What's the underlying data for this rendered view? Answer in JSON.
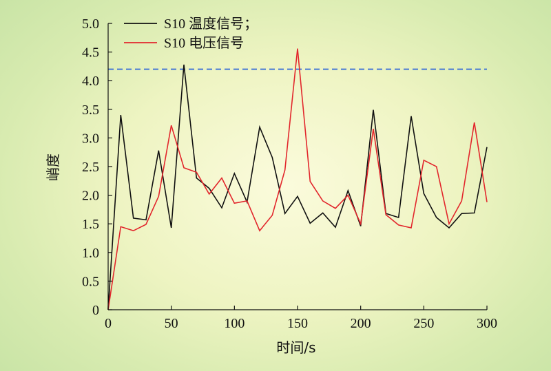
{
  "chart_data": {
    "type": "line",
    "xlabel": "时间/s",
    "ylabel": "峭度",
    "xlim": [
      0,
      300
    ],
    "ylim": [
      0,
      5.0
    ],
    "x_ticks": [
      "0",
      "50",
      "100",
      "150",
      "200",
      "250",
      "300"
    ],
    "y_ticks": [
      "0",
      "0.5",
      "1.0",
      "1.5",
      "2.0",
      "2.5",
      "3.0",
      "3.5",
      "4.0",
      "4.5",
      "5.0"
    ],
    "grid": false,
    "legend_position": "top-left",
    "reference_line": {
      "y": 4.2,
      "x_range": [
        0,
        300
      ],
      "style": "dashed",
      "color": "#3a6fd6"
    },
    "x": [
      0,
      10,
      20,
      30,
      40,
      50,
      60,
      70,
      80,
      90,
      100,
      110,
      120,
      130,
      140,
      150,
      160,
      170,
      180,
      190,
      200,
      210,
      220,
      230,
      240,
      250,
      260,
      270,
      280,
      290,
      300
    ],
    "series": [
      {
        "name": "S10 温度信号；",
        "color": "#111111",
        "values": [
          0,
          3.4,
          1.6,
          1.57,
          2.78,
          1.43,
          4.28,
          2.3,
          2.12,
          1.78,
          2.38,
          1.88,
          3.19,
          2.66,
          1.68,
          1.98,
          1.51,
          1.69,
          1.44,
          2.08,
          1.46,
          3.49,
          1.68,
          1.61,
          3.38,
          2.03,
          1.61,
          1.43,
          1.68,
          1.69,
          2.84
        ]
      },
      {
        "name": "S10 电压信号",
        "color": "#e2262c",
        "values": [
          0,
          1.45,
          1.38,
          1.49,
          1.98,
          3.22,
          2.48,
          2.4,
          2.02,
          2.3,
          1.86,
          1.9,
          1.38,
          1.65,
          2.44,
          4.56,
          2.24,
          1.9,
          1.77,
          2.0,
          1.5,
          3.16,
          1.66,
          1.48,
          1.43,
          2.61,
          2.5,
          1.5,
          1.9,
          3.27,
          1.88
        ]
      }
    ]
  }
}
